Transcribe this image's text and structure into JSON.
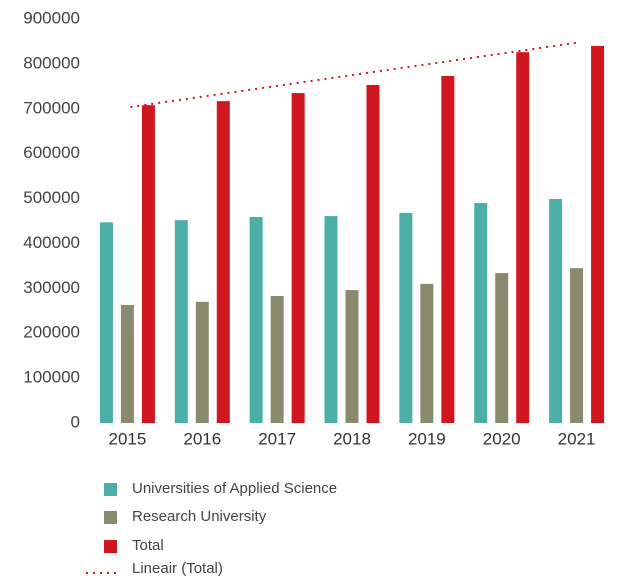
{
  "chart_data": {
    "type": "bar",
    "categories": [
      "2015",
      "2016",
      "2017",
      "2018",
      "2019",
      "2020",
      "2021"
    ],
    "series": [
      {
        "name": "Universities of Applied Science",
        "color": "#4bafa8",
        "values": [
          447000,
          452000,
          459000,
          461000,
          468000,
          490000,
          499000
        ]
      },
      {
        "name": "Research University",
        "color": "#8a8a6e",
        "values": [
          263000,
          270000,
          283000,
          296000,
          310000,
          334000,
          345000
        ]
      },
      {
        "name": "Total",
        "color": "#d0161e",
        "values": [
          708000,
          717000,
          735000,
          753000,
          773000,
          826000,
          840000
        ]
      },
      {
        "name": "Lineair (Total)",
        "type": "line",
        "style": "dotted",
        "color": "#d0161e",
        "values": [
          704000,
          728000,
          752000,
          776000,
          800000,
          824000,
          848000
        ]
      }
    ],
    "ylim": [
      0,
      900000
    ],
    "yticks": [
      0,
      100000,
      200000,
      300000,
      400000,
      500000,
      600000,
      700000,
      800000,
      900000
    ],
    "grid": false,
    "legend": "bottom"
  }
}
